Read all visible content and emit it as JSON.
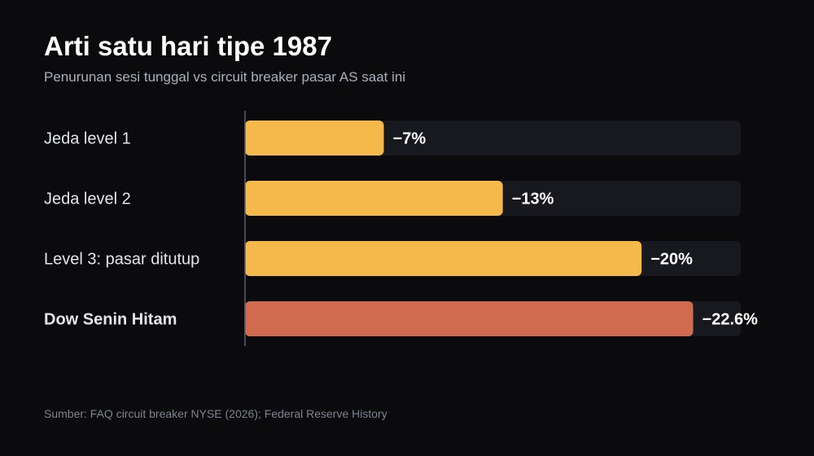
{
  "header": {
    "title": "Arti satu hari tipe 1987",
    "subtitle": "Penurunan sesi tunggal vs circuit breaker pasar AS saat ini"
  },
  "footer": {
    "source": "Sumber: FAQ circuit breaker NYSE (2026); Federal Reserve History"
  },
  "colors": {
    "background": "#0b0b0d",
    "track": "#18191e",
    "bar": "#f5b84a",
    "highlight": "#d06b4f",
    "axis": "#5c6070"
  },
  "chart_data": {
    "type": "bar",
    "orientation": "horizontal",
    "categories": [
      "Jeda level 1",
      "Jeda level 2",
      "Level 3: pasar ditutup",
      "Dow Senin Hitam"
    ],
    "values": [
      7,
      13,
      20,
      22.6
    ],
    "value_labels": [
      "−7%",
      "−13%",
      "−20%",
      "−22.6%"
    ],
    "highlight_index": 3,
    "xlim": [
      0,
      25
    ],
    "grid": false,
    "legend": "none"
  }
}
